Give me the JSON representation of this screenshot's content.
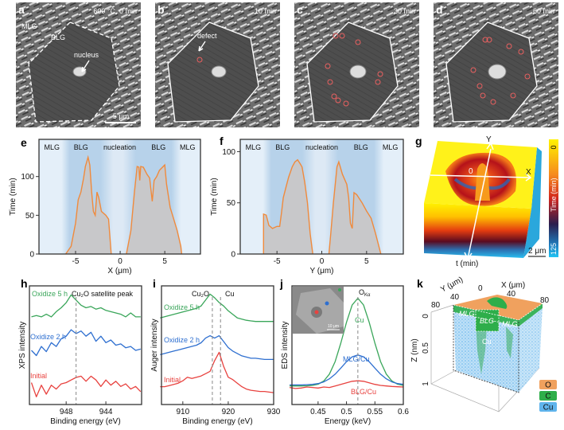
{
  "panels": {
    "a": {
      "letter": "a",
      "label": "600 °C, 0 min",
      "mlg": "MLG",
      "blg": "BLG",
      "nucleus": "nucleus",
      "scale": "5 μm"
    },
    "b": {
      "letter": "b",
      "label": "10 min",
      "defect": "defect"
    },
    "c": {
      "letter": "c",
      "label": "30 min"
    },
    "d": {
      "letter": "d",
      "label": "60 min"
    },
    "g": {
      "letter": "g",
      "axis_x": "X",
      "axis_y": "Y",
      "origin": "0",
      "axis_t": "t (min)",
      "scale": "2 μm",
      "colorbar": {
        "label": "Time (min)",
        "min": "0",
        "max": "125"
      }
    },
    "k": {
      "letter": "k",
      "axis_x": "X (μm)",
      "axis_y": "Y (μm)",
      "axis_z": "Z (nm)",
      "x_ticks": [
        "0",
        "40",
        "80"
      ],
      "y_ticks": [
        "40",
        "80"
      ],
      "z_ticks": [
        "0",
        "0.5",
        "1"
      ],
      "regions": [
        "MLG",
        "BLG",
        "MLG",
        "Cu"
      ],
      "legend": [
        {
          "label": "O",
          "color": "#f0a15e"
        },
        {
          "label": "C",
          "color": "#2eae4a"
        },
        {
          "label": "Cu",
          "color": "#5fb4ec"
        }
      ]
    }
  },
  "colors": {
    "green": "#3aa65a",
    "blue": "#2e6fd0",
    "red": "#e8423f",
    "orange": "#f08a3c"
  },
  "chart_data": [
    {
      "type": "area",
      "letter": "e",
      "xlabel": "X (μm)",
      "ylabel": "Time (min)",
      "xlim": [
        -9.1,
        9
      ],
      "ylim": [
        0,
        148
      ],
      "xticks": [
        -5,
        0,
        5
      ],
      "yticks": [
        0,
        50,
        100
      ],
      "regions": [
        "MLG",
        "BLG",
        "nucleation",
        "BLG",
        "MLG"
      ],
      "series": [
        {
          "name": "left-front",
          "points": [
            [
              -6.1,
              0
            ],
            [
              -5.5,
              10
            ],
            [
              -5,
              40
            ],
            [
              -4.7,
              70
            ],
            [
              -4.4,
              80
            ],
            [
              -4.1,
              98
            ],
            [
              -3.9,
              113
            ],
            [
              -3.6,
              125
            ],
            [
              -3.4,
              115
            ],
            [
              -3.2,
              80
            ],
            [
              -3.0,
              55
            ],
            [
              -2.8,
              50
            ],
            [
              -2.6,
              80
            ],
            [
              -2.4,
              73
            ],
            [
              -2.1,
              55
            ],
            [
              -1.6,
              50
            ],
            [
              -1.3,
              45
            ],
            [
              -1.0,
              0
            ]
          ]
        },
        {
          "name": "right-front",
          "points": [
            [
              0.7,
              0
            ],
            [
              1.2,
              30
            ],
            [
              1.6,
              80
            ],
            [
              1.9,
              113
            ],
            [
              2.1,
              112
            ],
            [
              2.2,
              95
            ],
            [
              2.3,
              113
            ],
            [
              2.6,
              112
            ],
            [
              3.0,
              103
            ],
            [
              3.3,
              98
            ],
            [
              3.6,
              68
            ],
            [
              3.8,
              95
            ],
            [
              4.1,
              100
            ],
            [
              4.4,
              108
            ],
            [
              5.0,
              115
            ],
            [
              5.2,
              90
            ],
            [
              5.6,
              60
            ],
            [
              6.0,
              45
            ],
            [
              6.4,
              30
            ],
            [
              6.8,
              10
            ],
            [
              6.9,
              0
            ]
          ]
        }
      ]
    },
    {
      "type": "area",
      "letter": "f",
      "xlabel": "Y (μm)",
      "ylabel": "Time (min)",
      "xlim": [
        -9.1,
        9.1
      ],
      "ylim": [
        0,
        112
      ],
      "xticks": [
        -5,
        0,
        5
      ],
      "yticks": [
        0,
        50,
        100
      ],
      "regions": [
        "MLG",
        "BLG",
        "nucleation",
        "BLG",
        "MLG"
      ],
      "series": [
        {
          "name": "left-front",
          "points": [
            [
              -6.5,
              0
            ],
            [
              -6.5,
              39
            ],
            [
              -6.2,
              38
            ],
            [
              -5.9,
              28
            ],
            [
              -5.5,
              25
            ],
            [
              -5,
              27
            ],
            [
              -4.7,
              27
            ],
            [
              -4.5,
              40
            ],
            [
              -4.3,
              55
            ],
            [
              -4,
              65
            ],
            [
              -3.7,
              75
            ],
            [
              -3.3,
              85
            ],
            [
              -3,
              90
            ],
            [
              -2.7,
              92
            ],
            [
              -2.4,
              88
            ],
            [
              -2.2,
              85
            ],
            [
              -1.9,
              70
            ],
            [
              -1.6,
              50
            ],
            [
              -1.3,
              20
            ],
            [
              -1.0,
              0
            ]
          ]
        },
        {
          "name": "right-front",
          "points": [
            [
              0.8,
              0
            ],
            [
              1.0,
              20
            ],
            [
              1.3,
              50
            ],
            [
              1.7,
              85
            ],
            [
              1.9,
              90
            ],
            [
              2.3,
              78
            ],
            [
              2.8,
              68
            ],
            [
              3.0,
              55
            ],
            [
              3.2,
              30
            ],
            [
              3.4,
              25
            ],
            [
              3.6,
              60
            ],
            [
              3.9,
              58
            ],
            [
              4.5,
              50
            ],
            [
              5.0,
              42
            ],
            [
              5.5,
              35
            ],
            [
              6,
              20
            ],
            [
              6.6,
              0
            ]
          ]
        }
      ]
    },
    {
      "type": "line",
      "letter": "h",
      "xlabel": "Binding energy (eV)",
      "ylabel": "XPS intensity",
      "xlim": [
        951.7,
        940.4
      ],
      "ylim": [
        0.8,
        10
      ],
      "xticks": [
        948,
        944
      ],
      "yticks": [],
      "x": [
        951.5,
        951,
        950.5,
        950,
        949.5,
        949,
        948.5,
        948,
        947.5,
        947,
        946.5,
        946,
        945.5,
        945,
        944.5,
        944,
        943.5,
        943,
        942.5,
        942,
        941.5,
        941,
        940.5
      ],
      "reference_line": 947,
      "annotation": "Cu₂O satellite peak",
      "series": [
        {
          "name": "Oxidize 5 h",
          "color": "#3aa65a",
          "values": [
            7.6,
            7.7,
            7.6,
            7.8,
            7.6,
            8.0,
            8.3,
            8.7,
            9.3,
            8.9,
            8.5,
            8.3,
            8.4,
            8.2,
            8.3,
            8.1,
            8.0,
            7.9,
            7.8,
            7.6,
            7.9,
            7.6,
            7.6
          ]
        },
        {
          "name": "Oxidize 2 h",
          "color": "#2e6fd0",
          "values": [
            5.0,
            4.6,
            5.3,
            4.9,
            5.6,
            5.3,
            5.9,
            6.1,
            6.6,
            6.3,
            6.5,
            6.1,
            6.4,
            5.7,
            6.1,
            5.6,
            5.8,
            5.4,
            5.5,
            5.2,
            5.3,
            5.0,
            5.1
          ]
        },
        {
          "name": "Initial",
          "color": "#e8423f",
          "values": [
            2.5,
            1.4,
            2.3,
            1.6,
            2.3,
            2.0,
            2.4,
            2.5,
            2.7,
            2.9,
            3.0,
            2.6,
            3.0,
            2.7,
            2.2,
            2.7,
            2.3,
            2.6,
            2.2,
            2.4,
            2.0,
            2.2,
            1.8
          ]
        }
      ]
    },
    {
      "type": "line",
      "letter": "i",
      "xlabel": "Binding energy (eV)",
      "ylabel": "Auger intensity",
      "xlim": [
        905.3,
        930
      ],
      "ylim": [
        0,
        10
      ],
      "xticks": [
        910,
        920,
        930
      ],
      "yticks": [],
      "x": [
        905,
        906,
        907,
        908,
        909,
        910,
        911,
        912,
        913,
        914,
        915,
        916,
        917,
        918,
        919,
        920,
        921,
        922,
        923,
        924,
        925,
        926,
        927,
        928,
        929,
        930
      ],
      "reference_lines": [
        {
          "x": 916.5,
          "label": "Cu₂O"
        },
        {
          "x": 918.3,
          "label": "Cu"
        }
      ],
      "series": [
        {
          "name": "Oxidize 5 h",
          "color": "#3aa65a",
          "values": [
            7.3,
            7.4,
            7.5,
            7.6,
            7.7,
            7.8,
            7.9,
            8.0,
            8.1,
            8.3,
            8.8,
            9.3,
            9.0,
            8.6,
            8.3,
            7.9,
            7.6,
            7.3,
            7.2,
            7.1,
            7.05,
            7.0,
            7.0,
            7.0,
            7.0,
            7.0
          ]
        },
        {
          "name": "Oxidize 2 h",
          "color": "#2e6fd0",
          "values": [
            4.2,
            4.3,
            4.4,
            4.5,
            4.6,
            4.7,
            4.8,
            4.9,
            5.0,
            5.2,
            5.6,
            5.8,
            5.6,
            5.8,
            5.3,
            4.8,
            4.5,
            4.3,
            4.1,
            4.0,
            3.9,
            3.9,
            3.85,
            3.8,
            3.8,
            3.8
          ]
        },
        {
          "name": "Initial",
          "color": "#e8423f",
          "values": [
            1.5,
            1.5,
            1.6,
            1.7,
            1.8,
            2.0,
            2.3,
            2.2,
            2.3,
            2.4,
            2.6,
            2.8,
            3.7,
            4.4,
            3.2,
            2.3,
            2.1,
            1.8,
            1.5,
            1.3,
            1.2,
            1.15,
            1.1,
            1.1,
            1.05,
            1.0
          ]
        }
      ]
    },
    {
      "type": "line",
      "letter": "j",
      "xlabel": "Energy (keV)",
      "ylabel": "EDS intensity",
      "xlim": [
        0.404,
        0.6
      ],
      "ylim": [
        -0.5,
        11
      ],
      "xticks": [
        0.45,
        0.5,
        0.55,
        0.6
      ],
      "yticks": [],
      "x": [
        0.4,
        0.41,
        0.42,
        0.43,
        0.44,
        0.45,
        0.46,
        0.47,
        0.48,
        0.49,
        0.5,
        0.51,
        0.52,
        0.53,
        0.54,
        0.55,
        0.56,
        0.57,
        0.58,
        0.59,
        0.6
      ],
      "reference_line": 0.52,
      "reference_label": {
        "main": "O",
        "sub": "Kα"
      },
      "inset_scale": "10 μm",
      "series": [
        {
          "name": "Cu",
          "color": "#3aa65a",
          "values": [
            1.3,
            1.3,
            1.3,
            1.31,
            1.35,
            1.47,
            1.78,
            2.45,
            3.66,
            5.44,
            7.47,
            9.15,
            9.8,
            9.15,
            7.47,
            5.44,
            3.66,
            2.45,
            1.78,
            1.47,
            1.35
          ]
        },
        {
          "name": "MLG/Cu",
          "color": "#2e6fd0",
          "values": [
            1.4,
            1.4,
            1.4,
            1.42,
            1.45,
            1.53,
            1.69,
            1.99,
            2.44,
            3.03,
            3.65,
            4.12,
            4.3,
            4.12,
            3.65,
            3.03,
            2.44,
            1.99,
            1.69,
            1.53,
            1.45
          ]
        },
        {
          "name": "BLG/Cu",
          "color": "#e8423f",
          "values": [
            1.15,
            1.05,
            1.1,
            1.2,
            1.15,
            1.1,
            1.2,
            1.15,
            1.3,
            1.45,
            1.6,
            1.75,
            1.8,
            1.75,
            1.6,
            1.45,
            1.35,
            1.3,
            1.25,
            1.22,
            1.2
          ]
        }
      ]
    }
  ]
}
